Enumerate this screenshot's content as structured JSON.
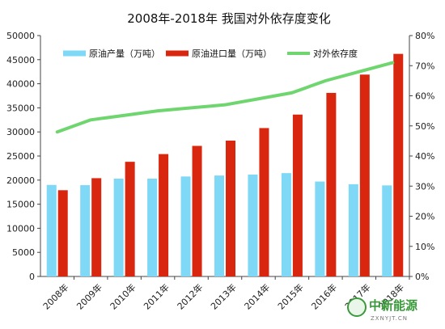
{
  "chart_data": {
    "type": "bar",
    "title": "2008年-2018年 我国对外依存度变化",
    "categories": [
      "2008年",
      "2009年",
      "2010年",
      "2011年",
      "2012年",
      "2013年",
      "2014年",
      "2015年",
      "2016年",
      "2017年",
      "2018年"
    ],
    "series": [
      {
        "name": "原油产量（万吨）",
        "kind": "bar",
        "axis": "left",
        "color": "#7fd8f5",
        "values": [
          19000,
          18950,
          20300,
          20300,
          20750,
          20950,
          21150,
          21450,
          19700,
          19150,
          18900
        ]
      },
      {
        "name": "原油进口量（万吨）",
        "kind": "bar",
        "axis": "left",
        "color": "#d9260f",
        "values": [
          17900,
          20400,
          23800,
          25400,
          27100,
          28200,
          30800,
          33600,
          38100,
          41900,
          46200
        ]
      },
      {
        "name": "对外依存度",
        "kind": "line",
        "axis": "right",
        "color": "#6fd66f",
        "values": [
          48.0,
          52.0,
          53.5,
          55.0,
          56.0,
          57.0,
          59.0,
          61.0,
          65.0,
          68.0,
          71.0
        ]
      }
    ],
    "y_left": {
      "min": 0,
      "max": 50000,
      "ticks": [
        0,
        5000,
        10000,
        15000,
        20000,
        25000,
        30000,
        35000,
        40000,
        45000,
        50000
      ]
    },
    "y_right": {
      "min": 0,
      "max": 80,
      "ticks": [
        "0%",
        "10%",
        "20%",
        "30%",
        "40%",
        "50%",
        "60%",
        "70%",
        "80%"
      ]
    },
    "grid": false,
    "legend": "top"
  },
  "watermark": {
    "text": "中新能源",
    "sub": "ZXNYJT.CN"
  }
}
